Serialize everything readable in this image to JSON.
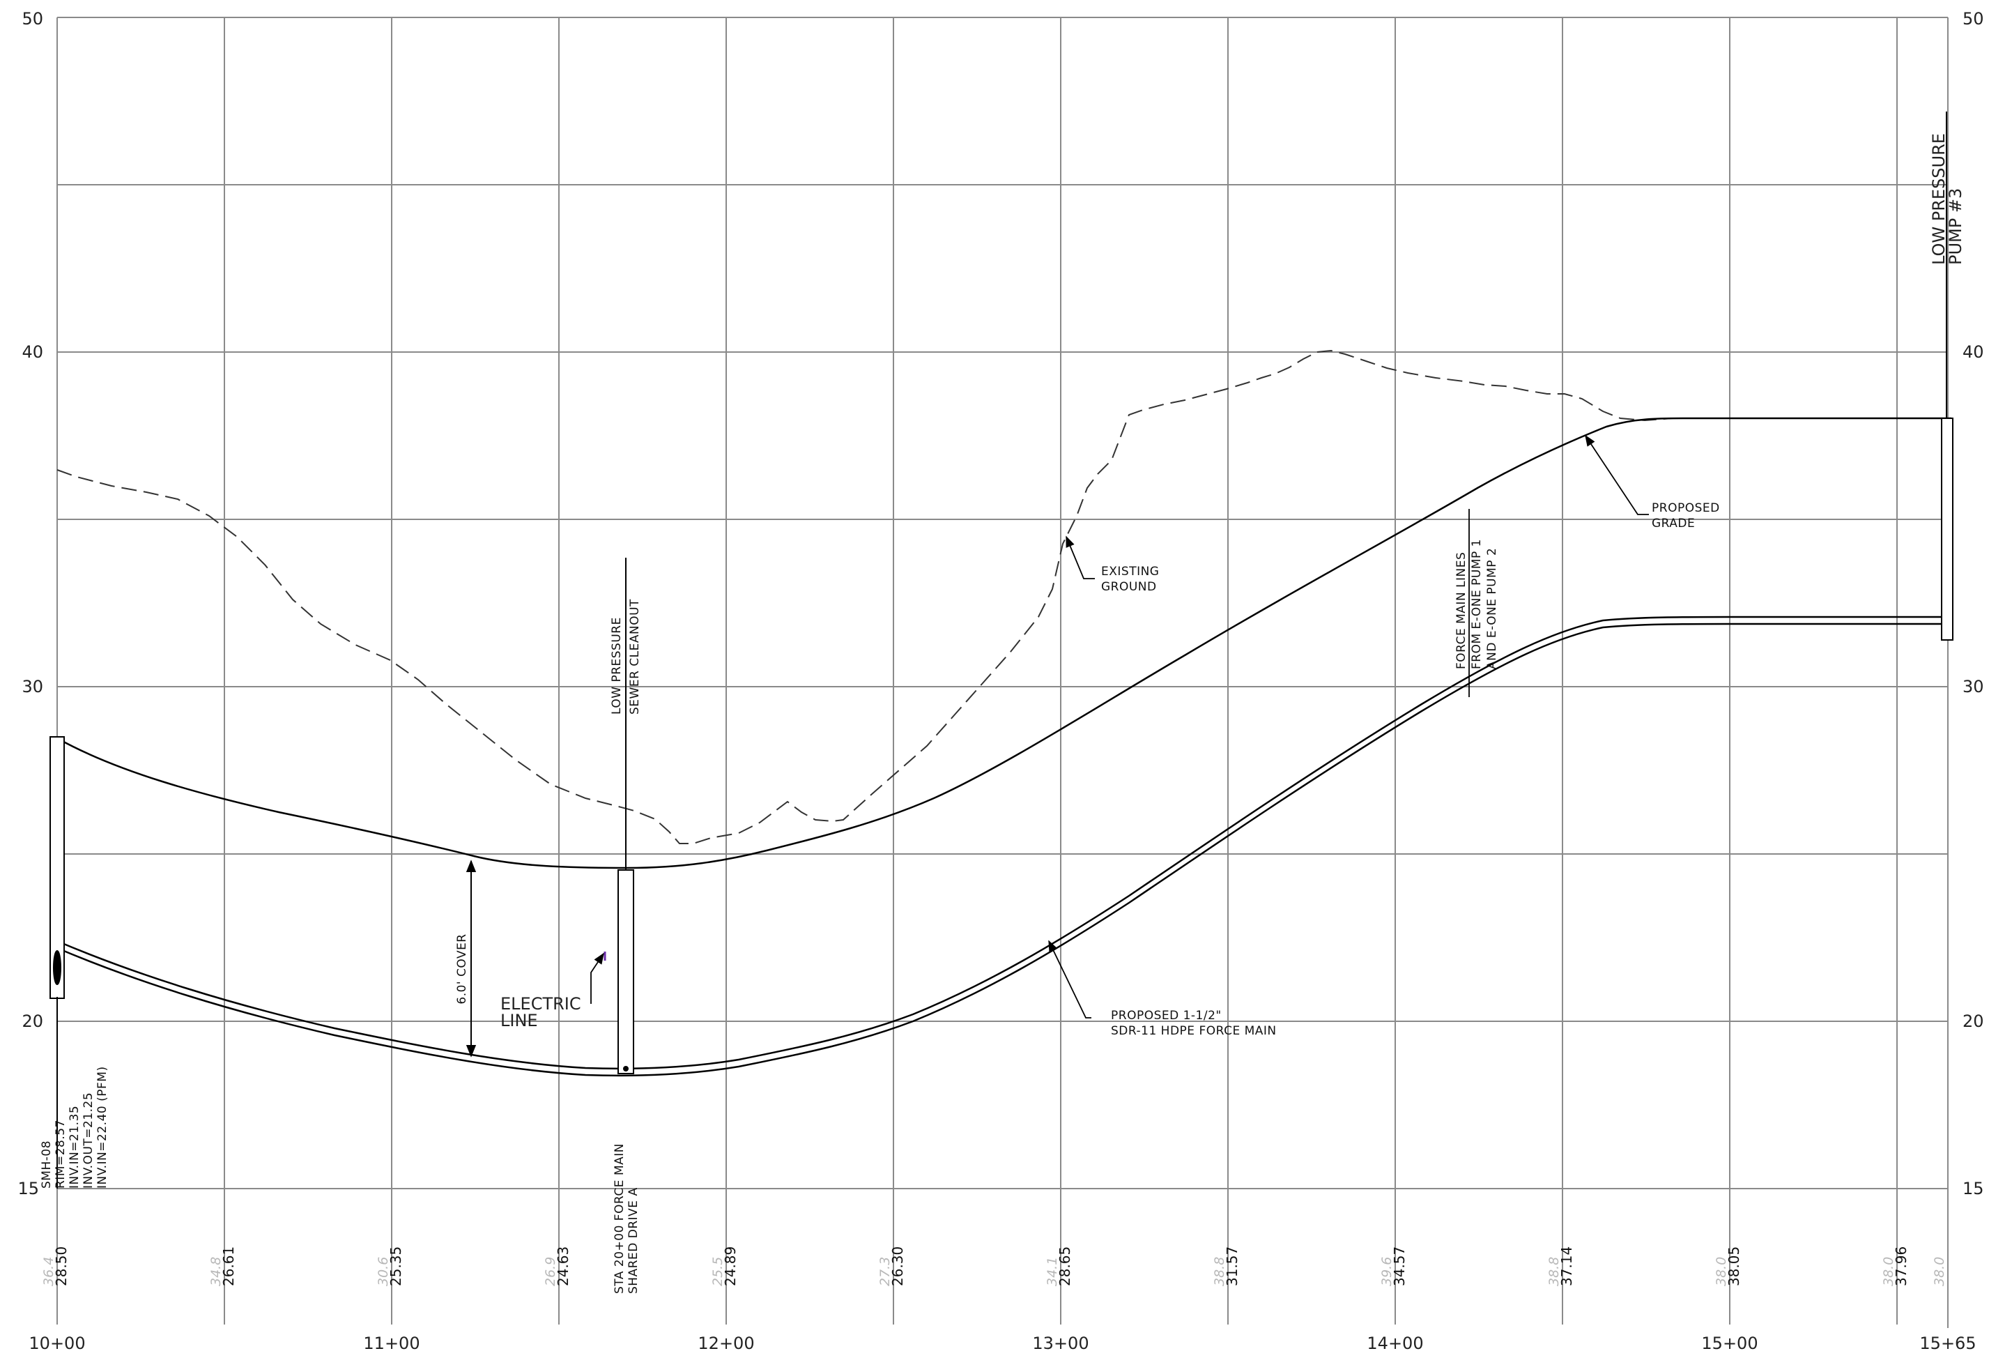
{
  "drawing": {
    "y_axis": {
      "min": 15,
      "max": 50,
      "labels_left": [
        "50",
        "40",
        "30",
        "20",
        "15"
      ],
      "labels_right": [
        "50",
        "40",
        "30",
        "20",
        "15"
      ]
    },
    "x_axis": {
      "labels": [
        "10+00",
        "11+00",
        "12+00",
        "13+00",
        "14+00",
        "15+00",
        "15+65"
      ]
    },
    "existing_elev_labels": [
      "36.4",
      "34.8",
      "30.6",
      "26.9",
      "25.5",
      "27.3",
      "34.1",
      "38.8",
      "39.6",
      "38.8",
      "38.0",
      "38.0",
      "38.0"
    ],
    "proposed_elev_labels": [
      "28.50",
      "26.61",
      "25.35",
      "24.63",
      "24.89",
      "26.30",
      "28.65",
      "31.57",
      "34.57",
      "37.14",
      "38.05",
      "37.96"
    ],
    "notes": {
      "smh_lines": [
        "SMH-08",
        "RIM=28.57",
        "INV.IN=21.35",
        "INV.OUT=21.25",
        "INV.IN=22.40 (PFM)"
      ],
      "cleanout_lines": [
        "LOW PRESSURE",
        "SEWER CLEANOUT"
      ],
      "station_lines": [
        "STA 20+00 FORCE MAIN",
        "SHARED DRIVE A"
      ],
      "cover": "6.0' COVER",
      "electric_lines": [
        "ELECTRIC",
        "LINE"
      ],
      "existing_lines": [
        "EXISTING",
        "GROUND"
      ],
      "force_main_lines": [
        "FORCE MAIN LINES",
        "FROM E-ONE PUMP 1",
        "AND E-ONE PUMP 2"
      ],
      "proposed_grade_lines": [
        "PROPOSED",
        "GRADE"
      ],
      "proposed_main_lines": [
        "PROPOSED 1-1/2\"",
        "SDR-11 HDPE FORCE MAIN"
      ],
      "pump_lines": [
        "LOW PRESSURE",
        "PUMP #3"
      ]
    },
    "colors": {
      "grid": "#8a8a8a",
      "line": "#000000",
      "existing_elev": "#b8b8b8",
      "electric": "#6a2ca8"
    }
  }
}
